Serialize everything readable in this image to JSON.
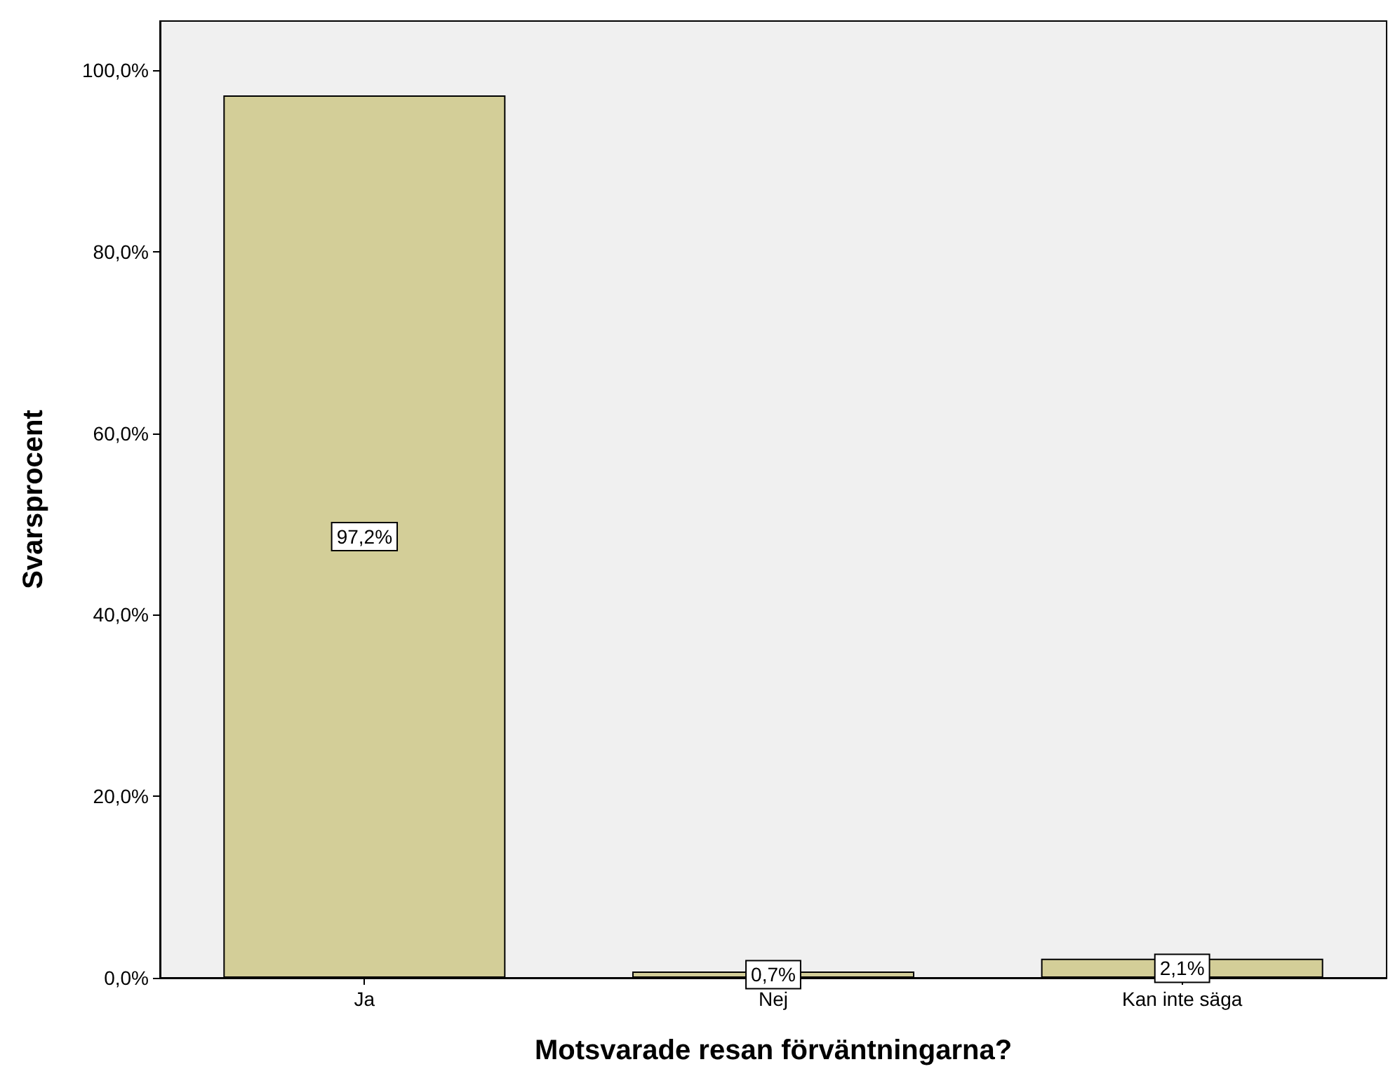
{
  "chart_data": {
    "type": "bar",
    "xlabel": "Motsvarade resan förväntningarna?",
    "ylabel": "Svarsprocent",
    "categories": [
      "Ja",
      "Nej",
      "Kan inte säga"
    ],
    "values": [
      97.2,
      0.7,
      2.1
    ],
    "value_labels": [
      "97,2%",
      "0,7%",
      "2,1%"
    ],
    "color": "#d3ce98",
    "ylim": [
      0,
      105.4
    ],
    "yticks": [
      {
        "value": 0,
        "label": "0,0%"
      },
      {
        "value": 20,
        "label": "20,0%"
      },
      {
        "value": 40,
        "label": "40,0%"
      },
      {
        "value": 60,
        "label": "60,0%"
      },
      {
        "value": 80,
        "label": "80,0%"
      },
      {
        "value": 100,
        "label": "100,0%"
      }
    ],
    "grid": false
  }
}
